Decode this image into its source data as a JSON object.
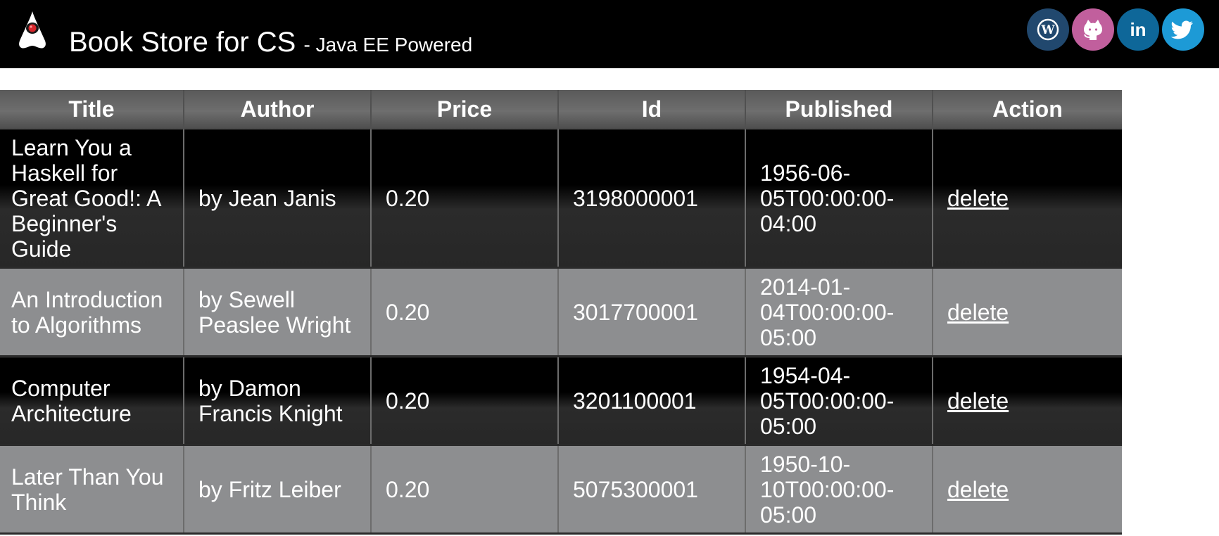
{
  "header": {
    "title": "Book Store for CS",
    "subtitle": "- Java EE Powered",
    "logo_icon": "duke-icon",
    "social": [
      {
        "icon": "wordpress-icon",
        "color": "#21486e"
      },
      {
        "icon": "github-icon",
        "color": "#c15f9d"
      },
      {
        "icon": "linkedin-icon",
        "color": "#0e6799"
      },
      {
        "icon": "twitter-icon",
        "color": "#1d9ad6"
      }
    ]
  },
  "table": {
    "columns": [
      "Title",
      "Author",
      "Price",
      "Id",
      "Published",
      "Action"
    ],
    "rows": [
      {
        "title": "Learn You a Haskell for Great Good!: A Beginner's Guide",
        "author": "by Jean Janis",
        "price": "0.20",
        "id": "3198000001",
        "published": "1956-06-05T00:00:00-04:00",
        "action": "delete"
      },
      {
        "title": "An Introduction to Algorithms",
        "author": "by Sewell Peaslee Wright",
        "price": "0.20",
        "id": "3017700001",
        "published": "2014-01-04T00:00:00-05:00",
        "action": "delete"
      },
      {
        "title": "Computer Architecture",
        "author": "by Damon Francis Knight",
        "price": "0.20",
        "id": "3201100001",
        "published": "1954-04-05T00:00:00-05:00",
        "action": "delete"
      },
      {
        "title": "Later Than You Think",
        "author": "by Fritz Leiber",
        "price": "0.20",
        "id": "5075300001",
        "published": "1950-10-10T00:00:00-05:00",
        "action": "delete"
      }
    ]
  },
  "colors": {
    "header_bg": "#000000",
    "row_dark": "#000000",
    "row_light": "#8d8e90"
  }
}
